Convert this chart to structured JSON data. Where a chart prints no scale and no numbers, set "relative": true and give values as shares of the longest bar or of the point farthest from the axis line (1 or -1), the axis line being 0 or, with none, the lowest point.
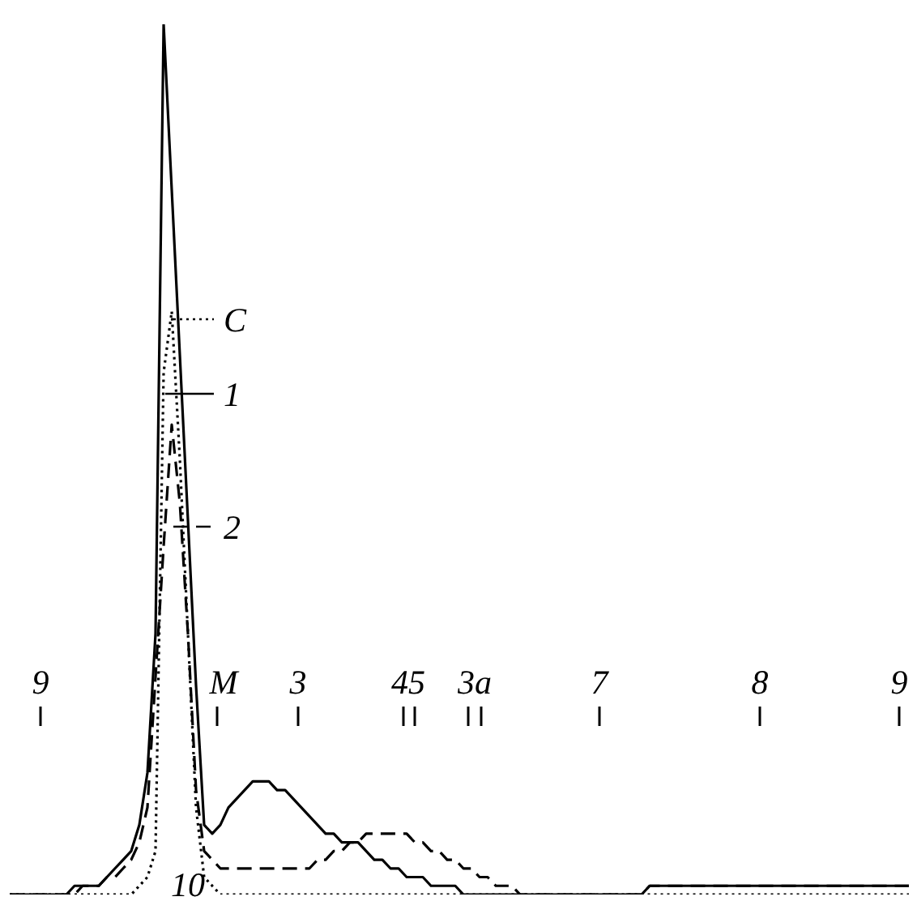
{
  "chart_data": {
    "type": "line",
    "relative": true,
    "marker": "none",
    "legend": "top left",
    "categories": [
      null,
      null,
      null,
      null,
      null,
      null,
      null,
      null,
      null,
      null,
      null,
      null,
      null,
      null,
      null,
      null,
      null,
      null,
      null,
      null,
      null,
      null,
      null,
      null,
      null,
      null,
      null,
      null,
      null,
      null,
      null,
      null,
      null,
      null,
      null,
      null,
      null,
      null,
      null,
      null,
      null,
      null,
      null,
      null,
      null,
      null,
      null,
      null,
      null,
      null,
      null,
      null,
      null,
      null,
      null,
      null,
      null,
      null,
      null,
      null,
      null,
      null,
      null,
      null,
      null,
      null,
      null,
      null,
      null,
      null,
      null,
      null,
      null,
      null,
      null,
      null,
      null,
      null,
      null,
      null,
      null,
      null,
      null,
      null,
      null,
      null,
      null,
      null,
      null,
      null,
      null,
      null,
      null,
      null,
      null,
      null,
      null,
      null,
      null,
      null,
      null,
      null,
      null,
      null,
      null,
      null,
      null,
      null,
      null,
      null,
      null,
      null
    ],
    "series": [
      {
        "name": "1",
        "color": "#000000",
        "line_style": "solid",
        "values": [
          0,
          0,
          0,
          0,
          0,
          0,
          0,
          0,
          0.01,
          0.01,
          0.01,
          0.01,
          0.02,
          0.03,
          0.04,
          0.05,
          0.08,
          0.14,
          0.3,
          1,
          0.81,
          0.62,
          0.43,
          0.24,
          0.08,
          0.07,
          0.08,
          0.1,
          0.11,
          0.12,
          0.13,
          0.13,
          0.13,
          0.12,
          0.12,
          0.11,
          0.1,
          0.09,
          0.08,
          0.07,
          0.07,
          0.06,
          0.06,
          0.06,
          0.05,
          0.04,
          0.04,
          0.03,
          0.03,
          0.02,
          0.02,
          0.02,
          0.01,
          0.01,
          0.01,
          0.01,
          0,
          0,
          0,
          0,
          0,
          0,
          0,
          0,
          0,
          0,
          0,
          0,
          0,
          0,
          0,
          0,
          0,
          0,
          0,
          0,
          0,
          0,
          0,
          0.01,
          0.01,
          0.01,
          0.01,
          0.01,
          0.01,
          0.01,
          0.01,
          0.01,
          0.01,
          0.01,
          0.01,
          0.01,
          0.01,
          0.01,
          0.01,
          0.01,
          0.01,
          0.01,
          0.01,
          0.01,
          0.01,
          0.01,
          0.01,
          0.01,
          0.01,
          0.01,
          0.01,
          0.01,
          0.01,
          0.01,
          0.01,
          0.01
        ]
      },
      {
        "name": "2",
        "color": "#000000",
        "line_style": "dashed",
        "values": [
          0,
          0,
          0,
          0,
          0,
          0,
          0,
          0,
          0,
          0.01,
          0.01,
          0.01,
          0.02,
          0.02,
          0.03,
          0.04,
          0.06,
          0.1,
          0.25,
          0.4,
          0.54,
          0.45,
          0.3,
          0.12,
          0.05,
          0.04,
          0.03,
          0.03,
          0.03,
          0.03,
          0.03,
          0.03,
          0.03,
          0.03,
          0.03,
          0.03,
          0.03,
          0.03,
          0.04,
          0.04,
          0.05,
          0.05,
          0.06,
          0.06,
          0.07,
          0.07,
          0.07,
          0.07,
          0.07,
          0.07,
          0.06,
          0.06,
          0.05,
          0.05,
          0.04,
          0.04,
          0.03,
          0.03,
          0.02,
          0.02,
          0.01,
          0.01,
          0.01,
          0,
          0,
          0,
          0,
          0,
          0,
          0,
          0,
          0,
          0,
          0,
          0,
          0,
          0,
          0,
          0,
          0.01,
          0.01,
          0.01,
          0.01,
          0.01,
          0.01,
          0.01,
          0.01,
          0.01,
          0.01,
          0.01,
          0.01,
          0.01,
          0.01,
          0.01,
          0.01,
          0.01,
          0.01,
          0.01,
          0.01,
          0.01,
          0.01,
          0.01,
          0.01,
          0.01,
          0.01,
          0.01,
          0.01,
          0.01,
          0.01,
          0.01,
          0.01,
          0.01
        ]
      },
      {
        "name": "C",
        "color": "#000000",
        "line_style": "dotted",
        "values": [
          0,
          0,
          0,
          0,
          0,
          0,
          0,
          0,
          0,
          0,
          0,
          0,
          0,
          0,
          0,
          0,
          0.01,
          0.02,
          0.05,
          0.6,
          0.67,
          0.5,
          0.3,
          0.1,
          0.02,
          0.01,
          0,
          0,
          0,
          0,
          0,
          0,
          0,
          0,
          0,
          0,
          0,
          0,
          0,
          0,
          0,
          0,
          0,
          0,
          0,
          0,
          0,
          0,
          0,
          0,
          0,
          0,
          0,
          0,
          0,
          0,
          0,
          0,
          0,
          0,
          0,
          0,
          0,
          0,
          0,
          0,
          0,
          0,
          0,
          0,
          0,
          0,
          0,
          0,
          0,
          0,
          0,
          0,
          0,
          0,
          0,
          0,
          0,
          0,
          0,
          0,
          0,
          0,
          0,
          0,
          0,
          0,
          0,
          0,
          0,
          0,
          0,
          0,
          0,
          0,
          0,
          0,
          0,
          0,
          0,
          0,
          0,
          0,
          0,
          0,
          0,
          0
        ]
      }
    ],
    "annotations": [
      "9",
      "M",
      "3",
      "45",
      "3a",
      "7",
      "8",
      "9",
      "10"
    ]
  }
}
